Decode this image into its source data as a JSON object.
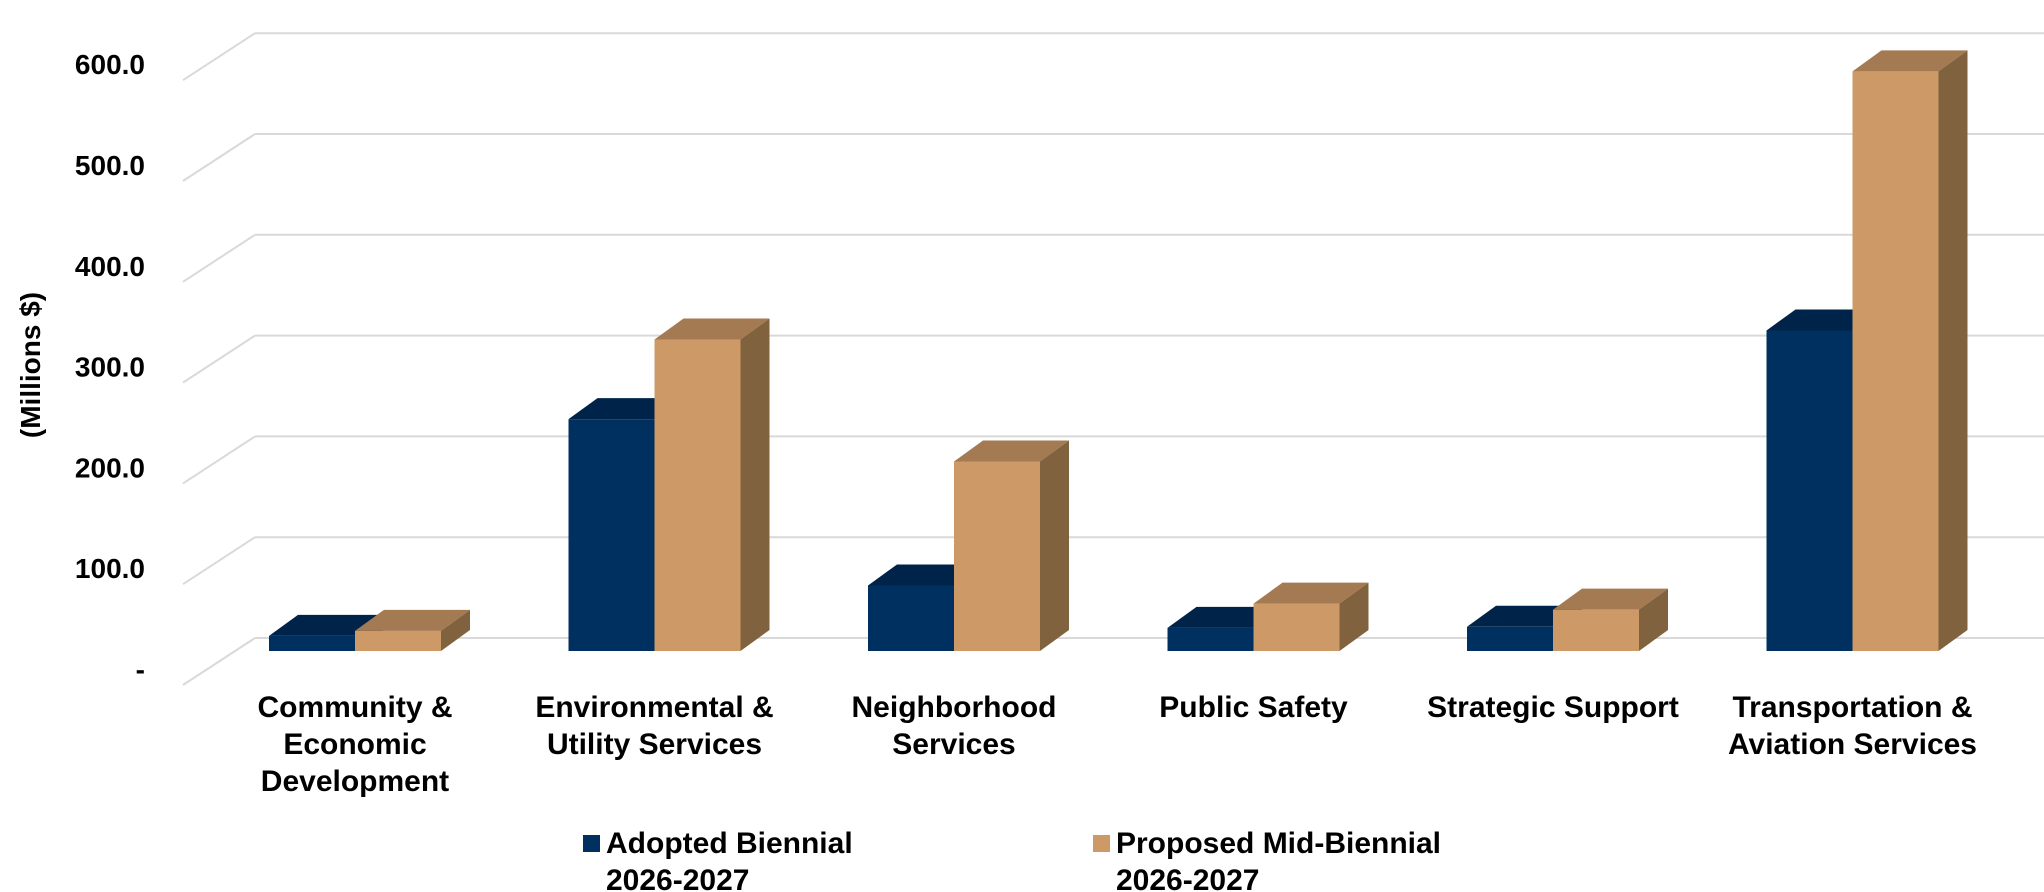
{
  "chart_data": {
    "type": "bar",
    "style": "3d-clustered-column",
    "categories": [
      [
        "Community &",
        "Economic",
        "Development"
      ],
      [
        "Environmental &",
        "Utility Services"
      ],
      [
        "Neighborhood",
        "Services"
      ],
      [
        "Public Safety"
      ],
      [
        "Strategic Support"
      ],
      [
        "Transportation &",
        "Aviation Services"
      ]
    ],
    "series": [
      {
        "name": [
          "Adopted Biennial",
          "2026-2027"
        ],
        "color": "#003060",
        "top_color": "#002449",
        "side_color": "#001E3C",
        "values": [
          15,
          230,
          65,
          23,
          24,
          318
        ]
      },
      {
        "name": [
          "Proposed Mid-Biennial",
          "2026-2027"
        ],
        "color": "#CD9966",
        "top_color": "#A47A52",
        "side_color": "#80623F",
        "values": [
          20,
          309,
          188,
          47,
          41,
          575
        ]
      }
    ],
    "ylabel": "(Millions $)",
    "ylim": [
      0,
      600
    ],
    "yticks": [
      {
        "value": 0,
        "label": "-"
      },
      {
        "value": 100,
        "label": "100.0"
      },
      {
        "value": 200,
        "label": "200.0"
      },
      {
        "value": 300,
        "label": "300.0"
      },
      {
        "value": 400,
        "label": "400.0"
      },
      {
        "value": 500,
        "label": "500.0"
      },
      {
        "value": 600,
        "label": "600.0"
      }
    ],
    "grid": true,
    "gridline_color": "#D9D9D9",
    "legend": "bottom"
  }
}
